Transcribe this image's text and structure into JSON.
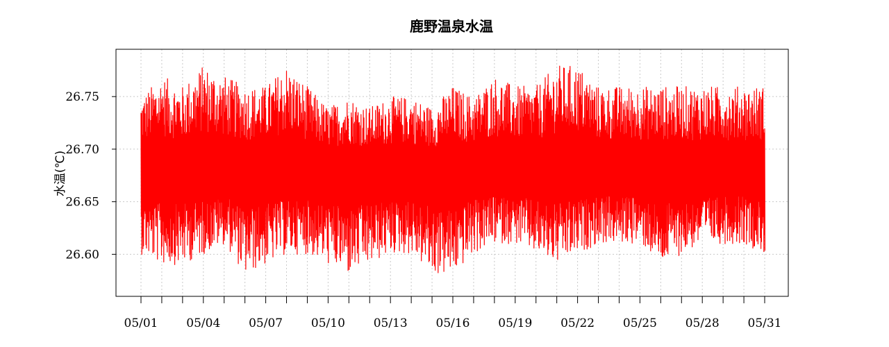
{
  "chart_data": {
    "type": "line",
    "title": "鹿野温泉水温",
    "xlabel": "",
    "ylabel": "水温(℃)",
    "ylim": [
      26.56,
      26.795
    ],
    "xlim": [
      "05/01",
      "05/31"
    ],
    "x_tick_labels": [
      "05/01",
      "05/04",
      "05/07",
      "05/10",
      "05/13",
      "05/16",
      "05/19",
      "05/22",
      "05/25",
      "05/28",
      "05/31"
    ],
    "minor_ticks": "daily",
    "y_ticks": [
      26.6,
      26.65,
      26.7,
      26.75
    ],
    "y_tick_labels": [
      "26.60",
      "26.65",
      "26.70",
      "26.75"
    ],
    "grid": true,
    "series": [
      {
        "color": "#ff0000",
        "description": "high-frequency readings oscillating around 26.68",
        "daily_range": [
          {
            "x": "05/01",
            "min": 26.6,
            "max": 26.75
          },
          {
            "x": "05/02",
            "min": 26.59,
            "max": 26.77
          },
          {
            "x": "05/03",
            "min": 26.59,
            "max": 26.76
          },
          {
            "x": "05/04",
            "min": 26.6,
            "max": 26.78
          },
          {
            "x": "05/05",
            "min": 26.61,
            "max": 26.77
          },
          {
            "x": "05/06",
            "min": 26.58,
            "max": 26.76
          },
          {
            "x": "05/07",
            "min": 26.59,
            "max": 26.76
          },
          {
            "x": "05/08",
            "min": 26.6,
            "max": 26.78
          },
          {
            "x": "05/09",
            "min": 26.6,
            "max": 26.76
          },
          {
            "x": "05/10",
            "min": 26.59,
            "max": 26.74
          },
          {
            "x": "05/11",
            "min": 26.58,
            "max": 26.75
          },
          {
            "x": "05/12",
            "min": 26.59,
            "max": 26.74
          },
          {
            "x": "05/13",
            "min": 26.6,
            "max": 26.75
          },
          {
            "x": "05/14",
            "min": 26.6,
            "max": 26.75
          },
          {
            "x": "05/15",
            "min": 26.58,
            "max": 26.74
          },
          {
            "x": "05/16",
            "min": 26.58,
            "max": 26.76
          },
          {
            "x": "05/17",
            "min": 26.6,
            "max": 26.75
          },
          {
            "x": "05/18",
            "min": 26.61,
            "max": 26.77
          },
          {
            "x": "05/19",
            "min": 26.61,
            "max": 26.76
          },
          {
            "x": "05/20",
            "min": 26.6,
            "max": 26.76
          },
          {
            "x": "05/21",
            "min": 26.59,
            "max": 26.78
          },
          {
            "x": "05/22",
            "min": 26.6,
            "max": 26.78
          },
          {
            "x": "05/23",
            "min": 26.61,
            "max": 26.76
          },
          {
            "x": "05/24",
            "min": 26.61,
            "max": 26.76
          },
          {
            "x": "05/25",
            "min": 26.61,
            "max": 26.76
          },
          {
            "x": "05/26",
            "min": 26.59,
            "max": 26.76
          },
          {
            "x": "05/27",
            "min": 26.6,
            "max": 26.76
          },
          {
            "x": "05/28",
            "min": 26.61,
            "max": 26.76
          },
          {
            "x": "05/29",
            "min": 26.61,
            "max": 26.76
          },
          {
            "x": "05/30",
            "min": 26.61,
            "max": 26.76
          },
          {
            "x": "05/31",
            "min": 26.6,
            "max": 26.76
          }
        ]
      }
    ]
  }
}
